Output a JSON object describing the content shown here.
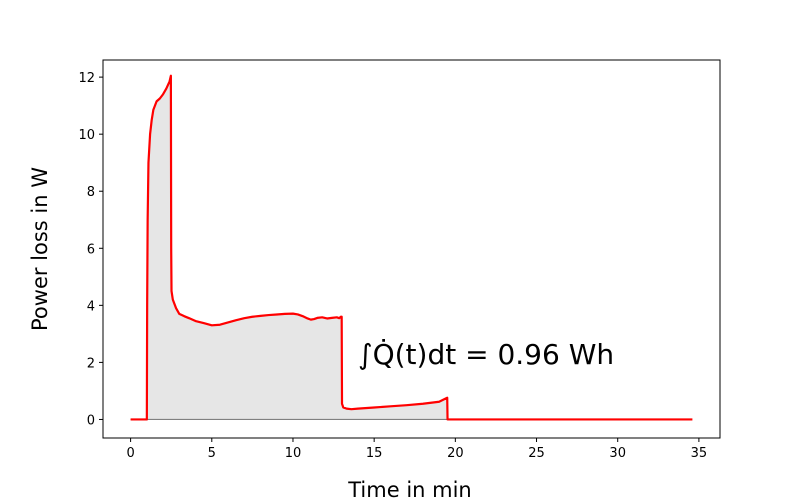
{
  "chart_data": {
    "type": "area",
    "xlabel": "Time in min",
    "ylabel": "Power loss in W",
    "xlim": [
      -1.7,
      36.3
    ],
    "ylim": [
      -0.65,
      12.6
    ],
    "xticks": [
      0,
      5,
      10,
      15,
      20,
      25,
      30,
      35
    ],
    "yticks": [
      0,
      2,
      4,
      6,
      8,
      10,
      12
    ],
    "grid": false,
    "annotation": "∫Q̇(t)dt = 0.96 Wh",
    "fill_color": "#e6e6e6",
    "baseline_color": "#808080",
    "series": [
      {
        "color": "#ff0000",
        "x": [
          0,
          1.0,
          1.02,
          1.05,
          1.1,
          1.2,
          1.3,
          1.4,
          1.5,
          1.6,
          1.8,
          2.0,
          2.2,
          2.4,
          2.48,
          2.5,
          2.52,
          2.6,
          2.8,
          3.0,
          3.3,
          3.6,
          4.0,
          4.5,
          5.0,
          5.5,
          6.0,
          6.5,
          7.0,
          7.5,
          8.0,
          8.5,
          9.0,
          9.5,
          10.0,
          10.3,
          10.6,
          10.9,
          11.1,
          11.3,
          11.5,
          11.8,
          12.1,
          12.4,
          12.7,
          12.85,
          12.95,
          13.0,
          13.02,
          13.1,
          13.3,
          13.6,
          14.0,
          15.0,
          16.0,
          17.0,
          18.0,
          19.0,
          19.5,
          19.52,
          20.0,
          25.0,
          30.0,
          34.6
        ],
        "y": [
          0,
          0,
          4.0,
          7.0,
          9.0,
          10.0,
          10.5,
          10.85,
          11.0,
          11.15,
          11.25,
          11.4,
          11.6,
          11.85,
          12.05,
          6.0,
          4.5,
          4.2,
          3.9,
          3.7,
          3.62,
          3.55,
          3.45,
          3.38,
          3.3,
          3.32,
          3.4,
          3.48,
          3.55,
          3.6,
          3.63,
          3.66,
          3.68,
          3.7,
          3.71,
          3.68,
          3.62,
          3.54,
          3.5,
          3.52,
          3.56,
          3.58,
          3.54,
          3.56,
          3.58,
          3.55,
          3.6,
          3.6,
          0.55,
          0.42,
          0.38,
          0.36,
          0.38,
          0.42,
          0.46,
          0.5,
          0.55,
          0.62,
          0.76,
          0,
          0,
          0,
          0,
          0
        ]
      }
    ]
  }
}
